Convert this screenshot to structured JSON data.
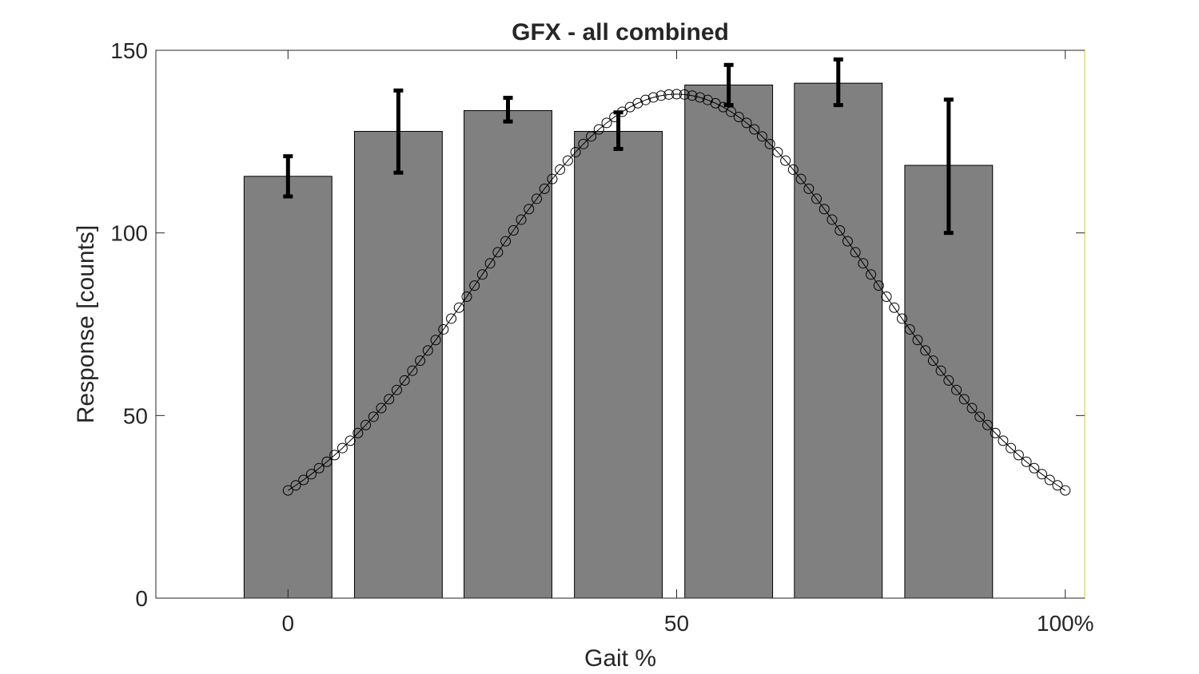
{
  "chart_data": {
    "type": "bar",
    "title": "GFX - all combined",
    "xlabel": "Gait %",
    "ylabel": "Response [counts]",
    "xlim": [
      -17,
      102.5
    ],
    "ylim": [
      0,
      150
    ],
    "x_ticks": [
      {
        "value": 0,
        "label": "0"
      },
      {
        "value": 50,
        "label": "50"
      },
      {
        "value": 100,
        "label": "100%"
      }
    ],
    "y_ticks": [
      {
        "value": 0,
        "label": "0"
      },
      {
        "value": 50,
        "label": "50"
      },
      {
        "value": 100,
        "label": "100"
      },
      {
        "value": 150,
        "label": "150"
      }
    ],
    "bar_width": 11.3,
    "bars": [
      {
        "x": 0,
        "value": 115.5,
        "err_low": 110.0,
        "err_high": 121.0
      },
      {
        "x": 14.2,
        "value": 127.8,
        "err_low": 116.5,
        "err_high": 139.0
      },
      {
        "x": 28.3,
        "value": 133.5,
        "err_low": 130.5,
        "err_high": 137.0
      },
      {
        "x": 42.5,
        "value": 127.8,
        "err_low": 123.0,
        "err_high": 133.0
      },
      {
        "x": 56.7,
        "value": 140.5,
        "err_low": 135.0,
        "err_high": 146.0
      },
      {
        "x": 70.8,
        "value": 141.0,
        "err_low": 135.0,
        "err_high": 147.5
      },
      {
        "x": 85.0,
        "value": 118.5,
        "err_low": 100.0,
        "err_high": 136.5
      }
    ],
    "curve": {
      "x_start": 0,
      "x_end": 100,
      "n_points": 101,
      "peak_x": 50,
      "peak_value": 138,
      "base_value": 12.5,
      "sigma": 25,
      "marker": "open-circle",
      "color": "#000000"
    },
    "bar_color": "#808080",
    "errorbar_color": "#000000",
    "grid": false
  }
}
